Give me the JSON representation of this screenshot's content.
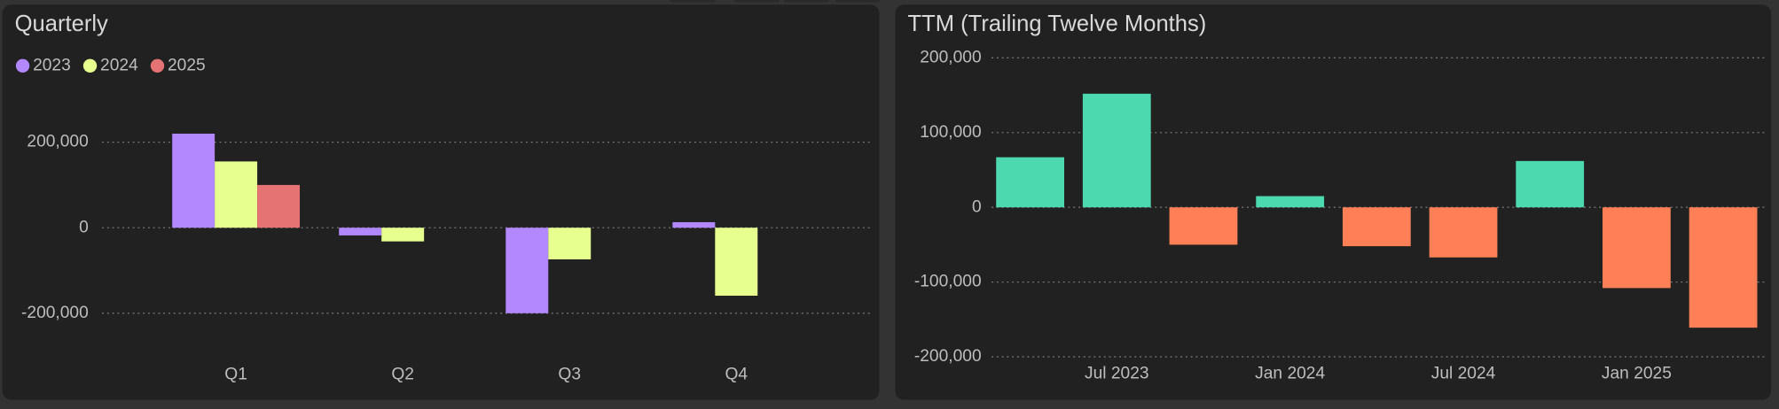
{
  "chart_data": [
    {
      "type": "bar",
      "title": "Quarterly",
      "categories": [
        "Q1",
        "Q2",
        "Q3",
        "Q4"
      ],
      "series": [
        {
          "name": "2023",
          "color": "#b388ff",
          "values": [
            220000,
            -18000,
            -200000,
            13000
          ]
        },
        {
          "name": "2024",
          "color": "#e6ff8f",
          "values": [
            155000,
            -32000,
            -74000,
            -159000
          ]
        },
        {
          "name": "2025",
          "color": "#e57373",
          "values": [
            100000,
            null,
            null,
            null
          ]
        }
      ],
      "ylim": [
        -300000,
        300000
      ],
      "yticks": [
        {
          "value": -200000,
          "label": "-200,000"
        },
        0,
        {
          "value": 200000,
          "label": "200,000"
        }
      ],
      "grid": true,
      "legend": "top-left"
    },
    {
      "type": "bar",
      "title": "TTM (Trailing Twelve Months)",
      "categories": [
        null,
        "Jul 2023",
        null,
        "Jan 2024",
        null,
        "Jul 2024",
        null,
        "Jan 2025",
        null
      ],
      "values": [
        67000,
        152000,
        -50000,
        15000,
        -52000,
        -67000,
        62000,
        -108000,
        -161000
      ],
      "positive_color": "#4dd9b0",
      "negative_color": "#ff7f56",
      "ylim": [
        -220000,
        220000
      ],
      "yticks": [
        {
          "value": -200000,
          "label": "-200,000"
        },
        {
          "value": -100000,
          "label": "-100,000"
        },
        0,
        {
          "value": 100000,
          "label": "100,000"
        },
        {
          "value": 200000,
          "label": "200,000"
        }
      ],
      "grid": true
    }
  ]
}
